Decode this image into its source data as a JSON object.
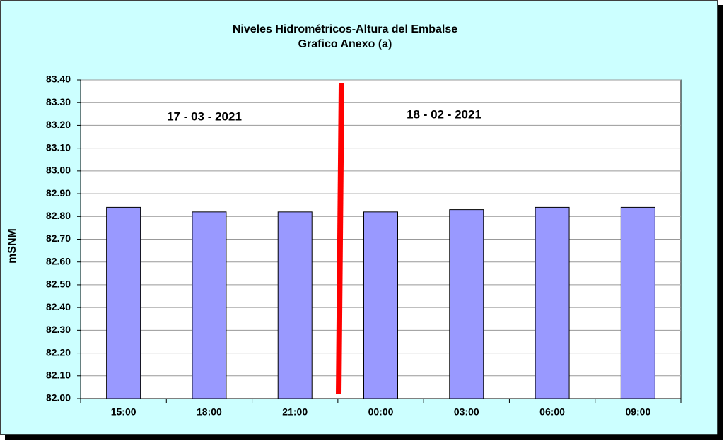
{
  "chart_data": {
    "type": "bar",
    "title": "Niveles Hidrométricos-Altura del Embalse",
    "subtitle": "Grafico Anexo (a)",
    "y_label": "mSNM",
    "annotations": [
      "17 - 03 - 2021",
      "18 - 02 - 2021"
    ],
    "categories": [
      "15:00",
      "18:00",
      "21:00",
      "00:00",
      "03:00",
      "06:00",
      "09:00"
    ],
    "values": [
      82.84,
      82.82,
      82.82,
      82.82,
      82.83,
      82.84,
      82.84
    ],
    "color": "#9999ff",
    "ylim": [
      82.0,
      83.4
    ],
    "yticks": [
      {
        "value": 82.0,
        "label": "82.00"
      },
      {
        "value": 82.1,
        "label": "82.10"
      },
      {
        "value": 82.2,
        "label": "82.20"
      },
      {
        "value": 82.3,
        "label": "82.30"
      },
      {
        "value": 82.4,
        "label": "82.40"
      },
      {
        "value": 82.5,
        "label": "82.50"
      },
      {
        "value": 82.6,
        "label": "82.60"
      },
      {
        "value": 82.7,
        "label": "82.70"
      },
      {
        "value": 82.8,
        "label": "82.80"
      },
      {
        "value": 82.9,
        "label": "82.90"
      },
      {
        "value": 83.0,
        "label": "83.00"
      },
      {
        "value": 83.1,
        "label": "83.10"
      },
      {
        "value": 83.2,
        "label": "83.20"
      },
      {
        "value": 83.3,
        "label": "83.30"
      },
      {
        "value": 83.4,
        "label": "83.40"
      }
    ],
    "grid": true
  }
}
